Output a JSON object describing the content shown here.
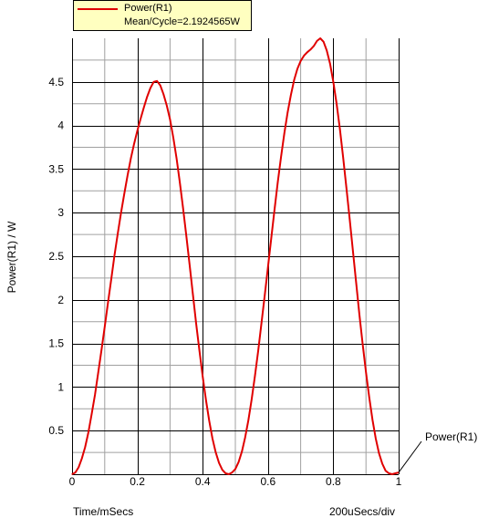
{
  "legend": {
    "series_name": "Power(R1)",
    "statistic": "Mean/Cycle=2.1924565W"
  },
  "axes": {
    "ylabel": "Power(R1) / W",
    "xlabel": "Time/mSecs",
    "xscale": "200uSecs/div"
  },
  "trace_label": "Power(R1)",
  "colors": {
    "trace": "#e00000",
    "grid_major": "#000000",
    "grid_minor": "#a0a0a0",
    "legend_bg": "#ffffc0"
  },
  "chart_data": {
    "type": "line",
    "grid": true,
    "xlim": [
      0,
      1
    ],
    "ylim": [
      0,
      5
    ],
    "x_ticks": [
      "0",
      "0.2",
      "0.4",
      "0.6",
      "0.8",
      "1"
    ],
    "y_ticks": [
      "0.5",
      "1",
      "1.5",
      "2",
      "2.5",
      "3",
      "3.5",
      "4",
      "4.5"
    ],
    "series": [
      {
        "name": "Power(R1)",
        "x": [
          0,
          0.01,
          0.02,
          0.03,
          0.04,
          0.05,
          0.06,
          0.07,
          0.08,
          0.09,
          0.1,
          0.11,
          0.12,
          0.13,
          0.14,
          0.15,
          0.16,
          0.17,
          0.18,
          0.19,
          0.2,
          0.21,
          0.22,
          0.23,
          0.24,
          0.25,
          0.26,
          0.27,
          0.28,
          0.29,
          0.3,
          0.31,
          0.32,
          0.33,
          0.34,
          0.35,
          0.36,
          0.37,
          0.38,
          0.39,
          0.4,
          0.41,
          0.42,
          0.43,
          0.44,
          0.45,
          0.46,
          0.47,
          0.48,
          0.49,
          0.5,
          0.51,
          0.52,
          0.53,
          0.54,
          0.55,
          0.56,
          0.57,
          0.58,
          0.59,
          0.6,
          0.61,
          0.62,
          0.63,
          0.64,
          0.65,
          0.66,
          0.67,
          0.68,
          0.69,
          0.7,
          0.71,
          0.72,
          0.73,
          0.74,
          0.75,
          0.76,
          0.77,
          0.78,
          0.79,
          0.8,
          0.81,
          0.82,
          0.83,
          0.84,
          0.85,
          0.86,
          0.87,
          0.88,
          0.89,
          0.9,
          0.91,
          0.92,
          0.93,
          0.94,
          0.95,
          0.96,
          0.97,
          0.98,
          0.99,
          1
        ],
        "y": [
          0.0,
          0.02,
          0.08,
          0.18,
          0.31,
          0.48,
          0.69,
          0.91,
          1.16,
          1.42,
          1.69,
          1.97,
          2.24,
          2.51,
          2.76,
          3.0,
          3.22,
          3.43,
          3.62,
          3.79,
          3.94,
          4.08,
          4.21,
          4.33,
          4.43,
          4.5,
          4.51,
          4.46,
          4.36,
          4.23,
          4.07,
          3.86,
          3.62,
          3.35,
          3.05,
          2.73,
          2.4,
          2.06,
          1.73,
          1.42,
          1.12,
          0.85,
          0.61,
          0.41,
          0.25,
          0.13,
          0.05,
          0.01,
          0.0,
          0.02,
          0.06,
          0.14,
          0.26,
          0.42,
          0.62,
          0.86,
          1.13,
          1.42,
          1.73,
          2.05,
          2.38,
          2.71,
          3.04,
          3.35,
          3.64,
          3.91,
          4.15,
          4.35,
          4.52,
          4.65,
          4.74,
          4.8,
          4.84,
          4.87,
          4.91,
          4.97,
          5.0,
          4.96,
          4.86,
          4.71,
          4.5,
          4.25,
          3.96,
          3.64,
          3.29,
          2.93,
          2.56,
          2.19,
          1.83,
          1.49,
          1.17,
          0.88,
          0.62,
          0.41,
          0.24,
          0.12,
          0.04,
          0.01,
          0.0,
          0.01,
          0.02
        ]
      }
    ]
  }
}
